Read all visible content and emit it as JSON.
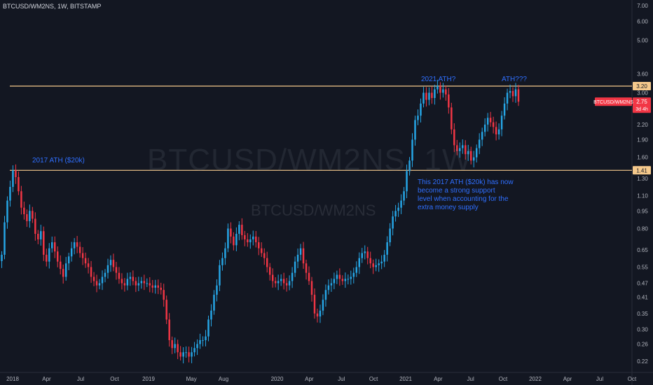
{
  "header": {
    "title": "BTCUSD/WM2NS, 1W, BITSTAMP"
  },
  "watermark": {
    "big": "BTCUSD/WM2NS, 1W",
    "small": "BTCUSD/WM2NS"
  },
  "annotations": {
    "ath_2017": "2017 ATH ($20k)",
    "ath_2021": "2021 ATH?",
    "ath_new": "ATH???",
    "support_note": "This 2017 ATH ($20k) has now\nbecome a strong support\nlevel when accounting for the\nextra money supply"
  },
  "colors": {
    "background": "#131722",
    "up": "#26a6e6",
    "down": "#f23645",
    "level_line": "#f5c98c",
    "annotation": "#2f6fff"
  },
  "chart_data": {
    "type": "candlestick",
    "title": "BTCUSD/WM2NS, 1W, BITSTAMP",
    "scale": "log",
    "y_ticks": [
      0.22,
      0.26,
      0.3,
      0.35,
      0.41,
      0.47,
      0.55,
      0.65,
      0.8,
      0.95,
      1.1,
      1.3,
      1.6,
      1.9,
      2.2,
      3.0,
      3.6,
      5.0,
      6.0,
      7.0
    ],
    "x_ticks": [
      {
        "label": "2018",
        "date": "2018-01"
      },
      {
        "label": "Apr",
        "date": "2018-04"
      },
      {
        "label": "Jul",
        "date": "2018-07"
      },
      {
        "label": "Oct",
        "date": "2018-10"
      },
      {
        "label": "2019",
        "date": "2019-01"
      },
      {
        "label": "May",
        "date": "2019-05"
      },
      {
        "label": "Aug",
        "date": "2019-08"
      },
      {
        "label": "2020",
        "date": "2020-01"
      },
      {
        "label": "Apr",
        "date": "2020-04"
      },
      {
        "label": "Jul",
        "date": "2020-07"
      },
      {
        "label": "Oct",
        "date": "2020-10"
      },
      {
        "label": "2021",
        "date": "2021-01"
      },
      {
        "label": "Apr",
        "date": "2021-04"
      },
      {
        "label": "Jul",
        "date": "2021-07"
      },
      {
        "label": "Oct",
        "date": "2021-10"
      },
      {
        "label": "2022",
        "date": "2022-01"
      },
      {
        "label": "Apr",
        "date": "2022-04"
      },
      {
        "label": "Jul",
        "date": "2022-07"
      },
      {
        "label": "Oct",
        "date": "2022-10"
      }
    ],
    "levels": [
      {
        "value": 3.2,
        "label": "3.20"
      },
      {
        "value": 1.41,
        "label": "1.41"
      }
    ],
    "last": {
      "symbol": "BTCUSD/WM2NS",
      "value": 2.75,
      "value_label": "2.75",
      "countdown": "3d 4h"
    },
    "closes": [
      0.62,
      0.85,
      1.05,
      1.2,
      1.41,
      1.32,
      1.15,
      0.98,
      0.92,
      0.86,
      0.95,
      0.88,
      0.76,
      0.72,
      0.78,
      0.62,
      0.58,
      0.66,
      0.7,
      0.64,
      0.58,
      0.54,
      0.5,
      0.57,
      0.61,
      0.66,
      0.7,
      0.67,
      0.63,
      0.6,
      0.57,
      0.55,
      0.5,
      0.48,
      0.46,
      0.47,
      0.5,
      0.52,
      0.56,
      0.59,
      0.55,
      0.52,
      0.49,
      0.47,
      0.46,
      0.49,
      0.5,
      0.48,
      0.46,
      0.47,
      0.48,
      0.47,
      0.47,
      0.46,
      0.45,
      0.46,
      0.45,
      0.44,
      0.4,
      0.33,
      0.27,
      0.25,
      0.26,
      0.24,
      0.23,
      0.24,
      0.24,
      0.23,
      0.24,
      0.25,
      0.26,
      0.27,
      0.27,
      0.28,
      0.33,
      0.36,
      0.42,
      0.46,
      0.56,
      0.6,
      0.66,
      0.8,
      0.74,
      0.68,
      0.76,
      0.83,
      0.75,
      0.72,
      0.7,
      0.72,
      0.74,
      0.7,
      0.66,
      0.63,
      0.6,
      0.55,
      0.51,
      0.48,
      0.47,
      0.48,
      0.49,
      0.47,
      0.46,
      0.48,
      0.52,
      0.58,
      0.62,
      0.66,
      0.57,
      0.52,
      0.48,
      0.42,
      0.35,
      0.34,
      0.36,
      0.4,
      0.44,
      0.46,
      0.47,
      0.49,
      0.51,
      0.49,
      0.48,
      0.49,
      0.49,
      0.5,
      0.52,
      0.55,
      0.6,
      0.63,
      0.64,
      0.6,
      0.57,
      0.55,
      0.56,
      0.57,
      0.58,
      0.62,
      0.7,
      0.8,
      0.9,
      0.95,
      0.98,
      1.05,
      1.15,
      1.4,
      1.55,
      1.9,
      2.3,
      2.4,
      2.7,
      3.0,
      2.8,
      3.0,
      2.85,
      3.1,
      3.2,
      3.0,
      3.1,
      2.95,
      2.6,
      2.1,
      1.8,
      1.7,
      1.75,
      1.8,
      1.65,
      1.7,
      1.55,
      1.6,
      1.75,
      1.9,
      2.05,
      2.2,
      2.35,
      2.25,
      2.15,
      2.0,
      2.1,
      2.4,
      2.7,
      3.0,
      3.05,
      2.9,
      3.1,
      2.75
    ]
  }
}
